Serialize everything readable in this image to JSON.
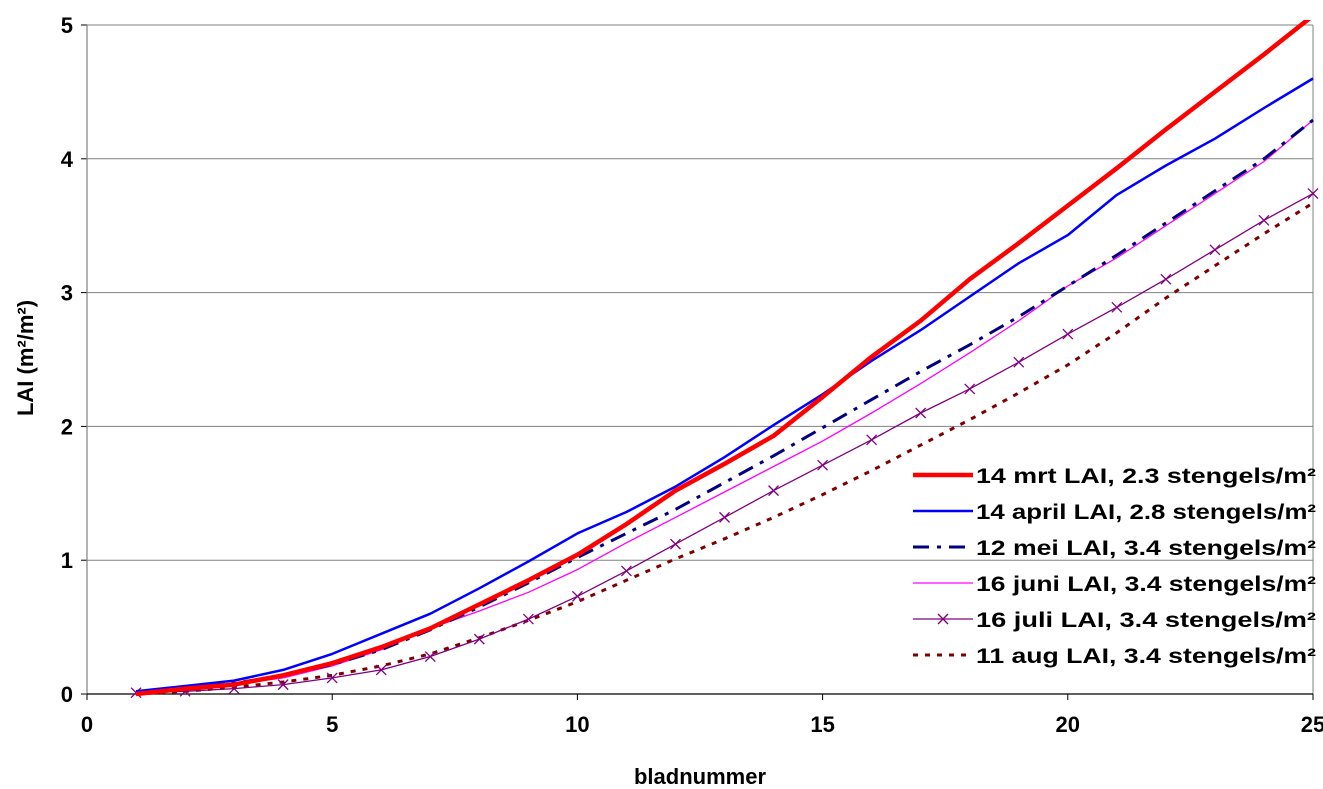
{
  "chart_data": {
    "type": "line",
    "title": "",
    "xlabel": "bladnummer",
    "ylabel": "LAI (m²/m²)",
    "xlim": [
      0,
      25
    ],
    "ylim": [
      0,
      5
    ],
    "xticks": [
      0,
      5,
      10,
      15,
      20,
      25
    ],
    "yticks": [
      0,
      1,
      2,
      3,
      4,
      5
    ],
    "grid": "horizontal",
    "legend_position": "right, lower half",
    "x": [
      1,
      2,
      3,
      4,
      5,
      6,
      7,
      8,
      9,
      10,
      11,
      12,
      13,
      14,
      15,
      16,
      17,
      18,
      19,
      20,
      21,
      22,
      23,
      24,
      25
    ],
    "series": [
      {
        "name": "14 mrt LAI, 2.3 stengels/m²",
        "color": "#ff0000",
        "style": "solid-thick",
        "values": [
          0.0,
          0.04,
          0.07,
          0.14,
          0.23,
          0.35,
          0.49,
          0.67,
          0.85,
          1.04,
          1.27,
          1.52,
          1.72,
          1.93,
          2.22,
          2.52,
          2.79,
          3.1,
          3.37,
          3.65,
          3.93,
          4.22,
          4.5,
          4.78,
          5.07
        ]
      },
      {
        "name": "14 april LAI, 2.8 stengels/m²",
        "color": "#0000ff",
        "style": "solid",
        "values": [
          0.02,
          0.06,
          0.1,
          0.18,
          0.3,
          0.45,
          0.6,
          0.79,
          0.99,
          1.2,
          1.36,
          1.55,
          1.77,
          2.01,
          2.24,
          2.49,
          2.72,
          2.97,
          3.22,
          3.43,
          3.73,
          3.95,
          4.15,
          4.38,
          4.6
        ]
      },
      {
        "name": "12 mei  LAI, 3.4 stengels/m²",
        "color": "#000080",
        "style": "dash-dot",
        "values": [
          0.01,
          0.04,
          0.08,
          0.14,
          0.22,
          0.33,
          0.48,
          0.65,
          0.83,
          1.02,
          1.2,
          1.38,
          1.58,
          1.78,
          1.99,
          2.2,
          2.41,
          2.61,
          2.82,
          3.05,
          3.28,
          3.52,
          3.76,
          4.0,
          4.29
        ]
      },
      {
        "name": " 16 juni LAI, 3.4 stengels/m²",
        "color": "#ff00ff",
        "style": "solid-thin",
        "values": [
          0.0,
          0.03,
          0.07,
          0.12,
          0.21,
          0.33,
          0.49,
          0.62,
          0.76,
          0.93,
          1.13,
          1.32,
          1.51,
          1.7,
          1.89,
          2.1,
          2.32,
          2.55,
          2.79,
          3.05,
          3.26,
          3.5,
          3.74,
          3.98,
          4.29
        ]
      },
      {
        "name": "16 juli LAI, 3.4 stengels/m²",
        "color": "#800080",
        "style": "solid-x-marker",
        "values": [
          0.01,
          0.02,
          0.04,
          0.07,
          0.12,
          0.18,
          0.28,
          0.41,
          0.56,
          0.73,
          0.92,
          1.12,
          1.32,
          1.52,
          1.71,
          1.9,
          2.1,
          2.28,
          2.48,
          2.69,
          2.89,
          3.1,
          3.32,
          3.54,
          3.74
        ]
      },
      {
        "name": "11 aug LAI, 3.4 stengels/m²",
        "color": "#800000",
        "style": "dotted",
        "values": [
          0.0,
          0.02,
          0.05,
          0.09,
          0.14,
          0.21,
          0.3,
          0.42,
          0.55,
          0.69,
          0.85,
          1.01,
          1.16,
          1.32,
          1.49,
          1.67,
          1.86,
          2.05,
          2.25,
          2.46,
          2.7,
          2.96,
          3.2,
          3.44,
          3.67
        ]
      }
    ]
  }
}
